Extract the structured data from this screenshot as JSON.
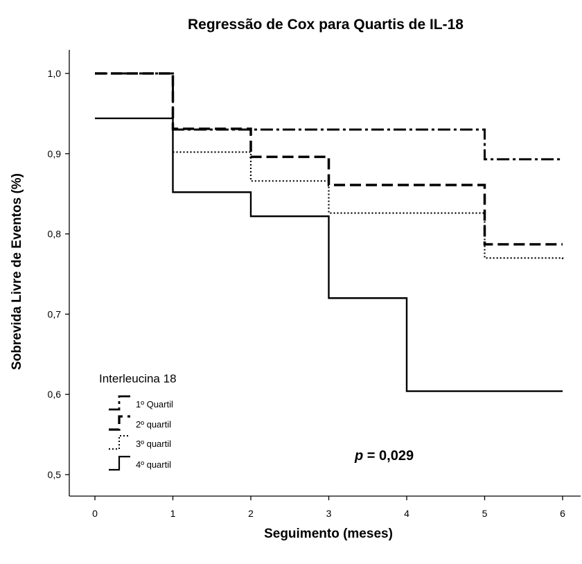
{
  "chart_data": {
    "type": "line",
    "subtype": "step",
    "title": "Regressão de Cox para Quartis de IL-18",
    "xlabel": "Seguimento (meses)",
    "ylabel": "Sobrevida Livre de Eventos (%)",
    "xlim": [
      0,
      6
    ],
    "ylim": [
      0.5,
      1.0
    ],
    "x_ticks": [
      "0",
      "1",
      "2",
      "3",
      "4",
      "5",
      "6"
    ],
    "y_ticks": [
      "0,5",
      "0,6",
      "0,7",
      "0,8",
      "0,9",
      "1,0"
    ],
    "grid": false,
    "legend": {
      "title": "Interleucina 18",
      "position": "bottom-left",
      "entries": [
        "1º Quartil",
        "2º quartil",
        "3º quartil",
        "4º quartil"
      ]
    },
    "annotation": {
      "p_symbol": "p",
      "p_text": "= 0,029",
      "position": "bottom-center"
    },
    "series": [
      {
        "name": "1º Quartil",
        "style": "dashdot",
        "x": [
          0,
          1,
          5,
          6
        ],
        "y": [
          1.0,
          0.93,
          0.893,
          0.893
        ]
      },
      {
        "name": "2º quartil",
        "style": "dashed",
        "x": [
          0,
          1,
          2,
          3,
          5,
          6
        ],
        "y": [
          1.0,
          0.931,
          0.896,
          0.861,
          0.787,
          0.787
        ]
      },
      {
        "name": "3º quartil",
        "style": "dotted",
        "x": [
          1,
          2,
          3,
          5,
          6
        ],
        "y": [
          0.902,
          0.866,
          0.826,
          0.77,
          0.768
        ]
      },
      {
        "name": "4º quartil",
        "style": "solid",
        "x": [
          0,
          1,
          2,
          3,
          4,
          6
        ],
        "y": [
          0.944,
          0.852,
          0.822,
          0.72,
          0.604,
          0.604
        ]
      }
    ]
  }
}
